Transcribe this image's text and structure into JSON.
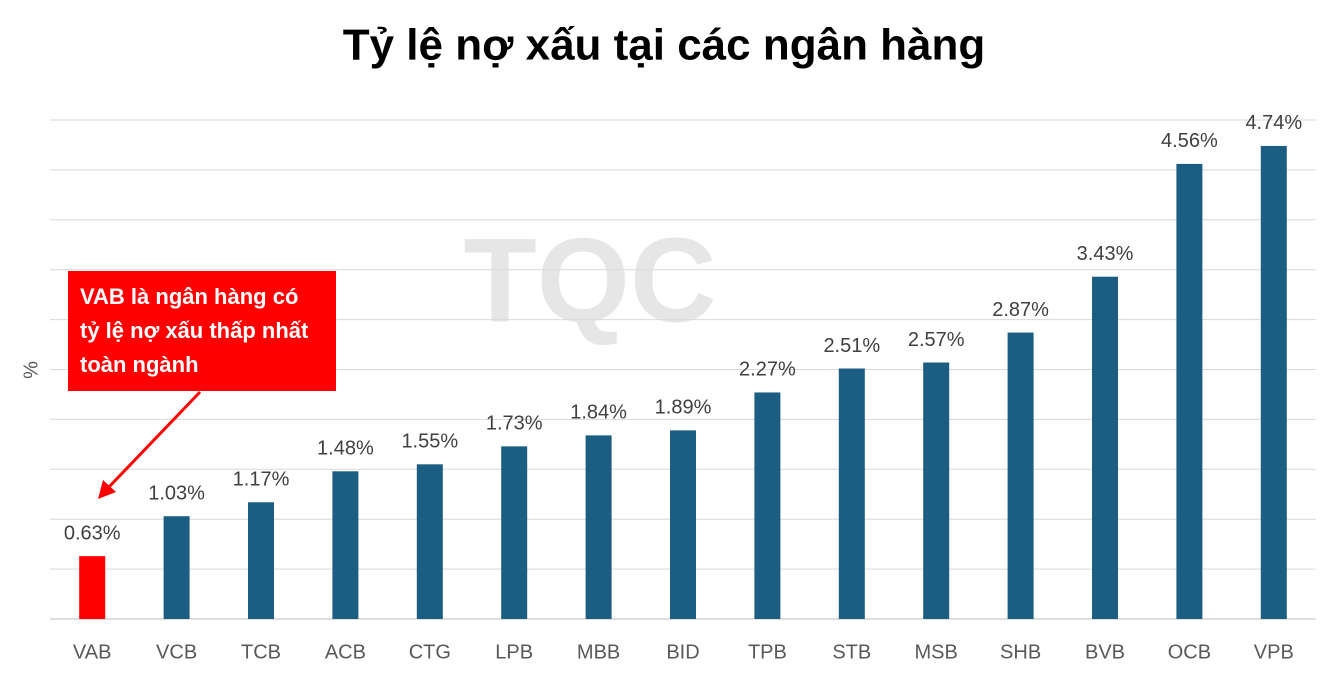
{
  "chart_data": {
    "type": "bar",
    "title": "Tỷ lệ nợ xấu tại các ngân hàng",
    "y_label": "%",
    "watermark": "TQC",
    "annotation": "VAB là ngân hàng có tỷ lệ nợ xấu thấp nhất toàn ngành",
    "categories": [
      "VAB",
      "VCB",
      "TCB",
      "ACB",
      "CTG",
      "LPB",
      "MBB",
      "BID",
      "TPB",
      "STB",
      "MSB",
      "SHB",
      "BVB",
      "OCB",
      "VPB"
    ],
    "values": [
      0.63,
      1.03,
      1.17,
      1.48,
      1.55,
      1.73,
      1.84,
      1.89,
      2.27,
      2.51,
      2.57,
      2.87,
      3.43,
      4.56,
      4.74
    ],
    "value_labels": [
      "0.63%",
      "1.03%",
      "1.17%",
      "1.48%",
      "1.55%",
      "1.73%",
      "1.84%",
      "1.89%",
      "2.27%",
      "2.51%",
      "2.57%",
      "2.87%",
      "3.43%",
      "4.56%",
      "4.74%"
    ],
    "colors": [
      "#ff0000",
      "#1b5e82",
      "#1b5e82",
      "#1b5e82",
      "#1b5e82",
      "#1b5e82",
      "#1b5e82",
      "#1b5e82",
      "#1b5e82",
      "#1b5e82",
      "#1b5e82",
      "#1b5e82",
      "#1b5e82",
      "#1b5e82",
      "#1b5e82"
    ],
    "ylim": [
      0,
      5
    ],
    "yticks": [
      0,
      0.5,
      1,
      1.5,
      2,
      2.5,
      3,
      3.5,
      4,
      4.5,
      5
    ],
    "grid": true
  }
}
